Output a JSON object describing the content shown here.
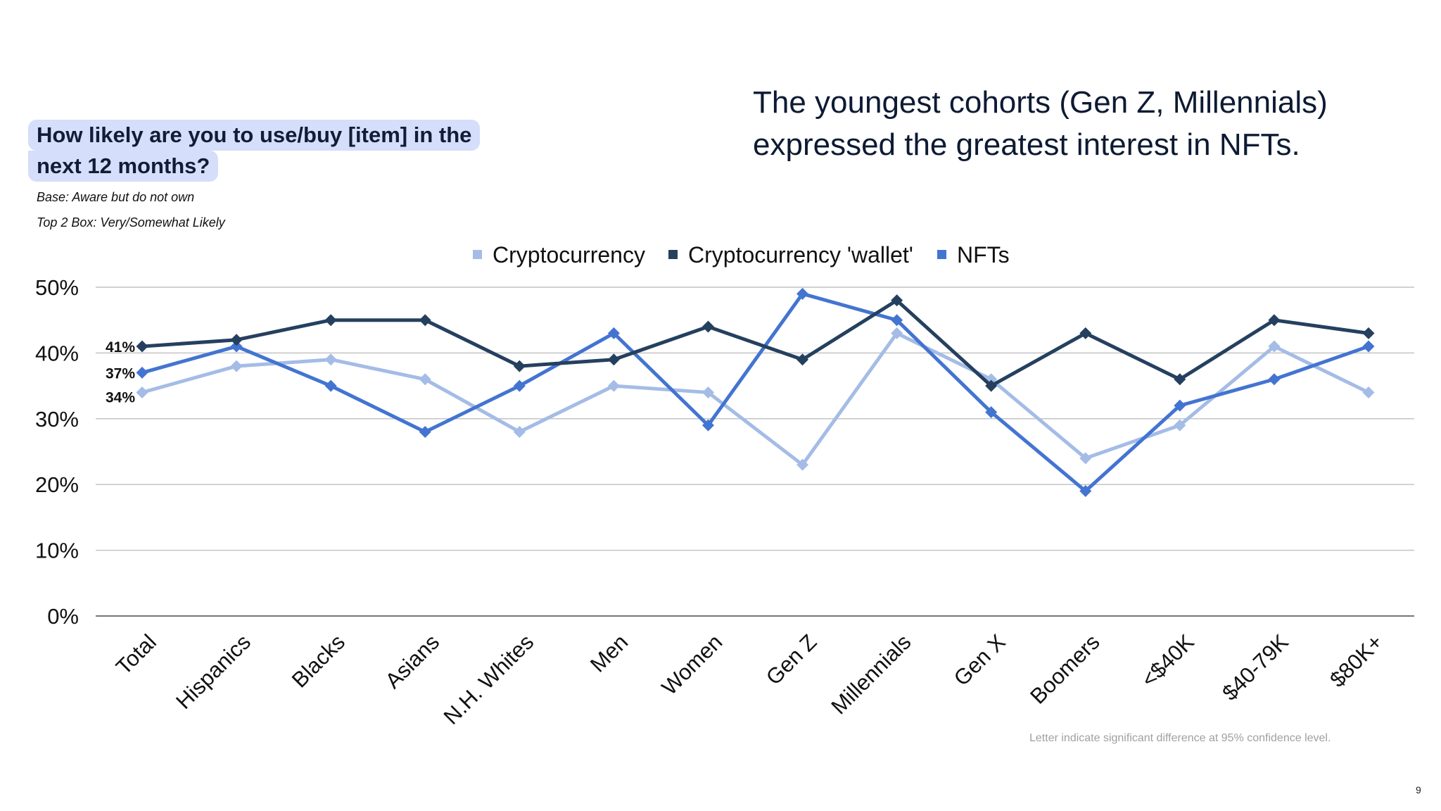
{
  "question": {
    "line1": "How likely are you to use/buy [item] in the",
    "line2": "next 12 months?",
    "base": "Base: Aware but do not own",
    "top2": "Top 2 Box: Very/Somewhat Likely"
  },
  "headline": {
    "line1": "The youngest cohorts (Gen Z, Millennials)",
    "line2": "expressed the greatest interest in NFTs."
  },
  "footnote": "Letter indicate significant difference at 95% confidence level.",
  "page_number": "9",
  "chart_data": {
    "type": "line",
    "categories": [
      "Total",
      "Hispanics",
      "Blacks",
      "Asians",
      "N.H. Whites",
      "Men",
      "Women",
      "Gen Z",
      "Millennials",
      "Gen X",
      "Boomers",
      "<$40K",
      "$40-79K",
      "$80K+"
    ],
    "ylim": [
      0,
      50
    ],
    "yticks": [
      0,
      10,
      20,
      30,
      40,
      50
    ],
    "ytick_labels": [
      "0%",
      "10%",
      "20%",
      "30%",
      "40%",
      "50%"
    ],
    "grid": true,
    "legend": "top",
    "series": [
      {
        "name": "Cryptocurrency",
        "color": "#a4bce6",
        "values": [
          34,
          38,
          39,
          36,
          28,
          35,
          34,
          23,
          43,
          36,
          24,
          29,
          41,
          34
        ]
      },
      {
        "name": "Cryptocurrency 'wallet'",
        "color": "#25405f",
        "values": [
          41,
          42,
          45,
          45,
          38,
          39,
          44,
          39,
          48,
          35,
          43,
          36,
          45,
          43
        ]
      },
      {
        "name": "NFTs",
        "color": "#4374d1",
        "values": [
          37,
          41,
          35,
          28,
          35,
          43,
          29,
          49,
          45,
          31,
          19,
          32,
          36,
          41
        ]
      }
    ],
    "data_labels": [
      {
        "series": 1,
        "index": 0,
        "text": "41%"
      },
      {
        "series": 2,
        "index": 0,
        "text": "37%"
      },
      {
        "series": 0,
        "index": 0,
        "text": "34%"
      }
    ]
  }
}
